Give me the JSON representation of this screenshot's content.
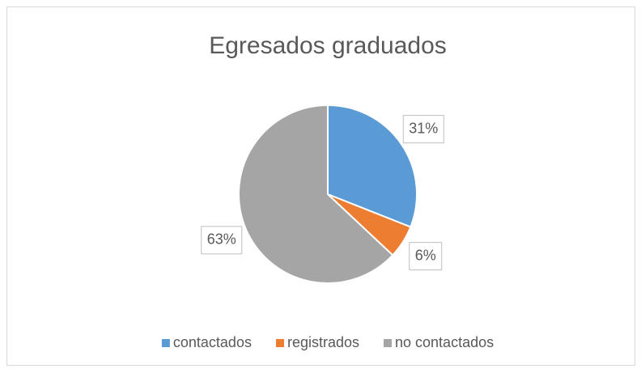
{
  "chart_data": {
    "type": "pie",
    "title": "Egresados graduados",
    "categories": [
      "contactados",
      "registrados",
      "no contactados"
    ],
    "values": [
      31,
      6,
      63
    ],
    "value_labels": [
      "31%",
      "6%",
      "63%"
    ],
    "colors": [
      "#5b9bd5",
      "#ed7d31",
      "#a5a5a5"
    ],
    "legend": "bottom"
  }
}
